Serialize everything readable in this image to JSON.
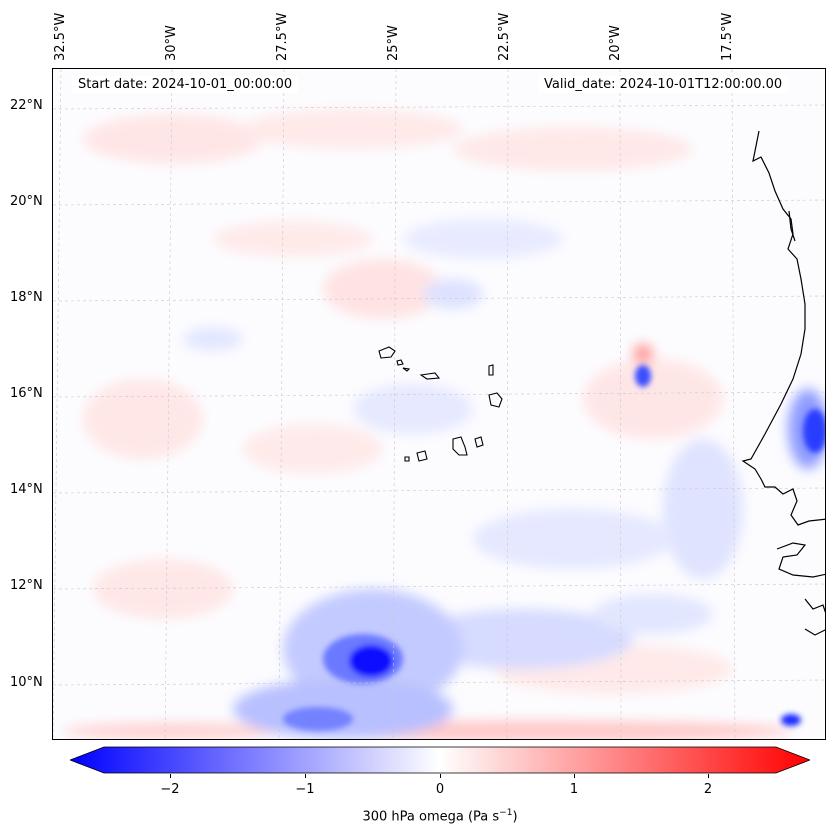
{
  "map": {
    "lon_labels": [
      "32.5°W",
      "30°W",
      "27.5°W",
      "25°W",
      "22.5°W",
      "20°W",
      "17.5°W"
    ],
    "lat_labels": [
      "22°N",
      "20°N",
      "18°N",
      "16°N",
      "14°N",
      "12°N",
      "10°N"
    ],
    "start_date": "Start date: 2024-10-01_00:00:00",
    "valid_date": "Valid_date: 2024-10-01T12:00:00.00",
    "colors": {
      "negative": "#0000ff",
      "zero": "#ffffff",
      "positive": "#ff0000",
      "coast": "#000000"
    }
  },
  "colorbar": {
    "ticks": [
      "−2",
      "−1",
      "0",
      "1",
      "2"
    ],
    "label": "300 hPa omega (Pa s",
    "label_sup": "−1",
    "label_end": ")",
    "range": [
      -2.5,
      2.5
    ],
    "colormap": "bwr"
  }
}
